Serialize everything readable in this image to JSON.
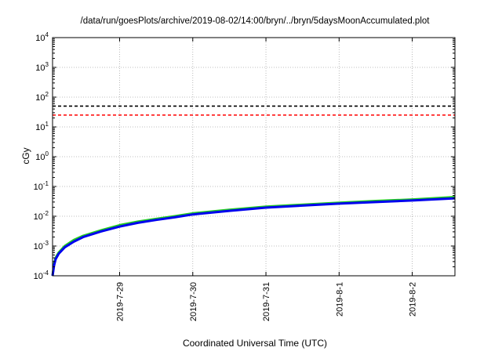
{
  "chart_data": {
    "type": "line",
    "title": "/data/run/goesPlots/archive/2019-08-02/14:00/bryn/../bryn/5daysMoonAccumulated.plot",
    "xlabel": "Coordinated Universal Time (UTC)",
    "ylabel": "cGy",
    "yscale": "log",
    "ylim": [
      0.0001,
      10000
    ],
    "xlim": [
      "2019-07-28T02:00",
      "2019-08-02T14:00"
    ],
    "grid": true,
    "x_ticks": [
      {
        "value": "2019-07-29",
        "label": "2019-7-29"
      },
      {
        "value": "2019-07-30",
        "label": "2019-7-30"
      },
      {
        "value": "2019-07-31",
        "label": "2019-7-31"
      },
      {
        "value": "2019-08-01",
        "label": "2019-8-1"
      },
      {
        "value": "2019-08-02",
        "label": "2019-8-2"
      }
    ],
    "y_ticks": [
      {
        "value": 0.0001,
        "base": "10",
        "exp": "-4"
      },
      {
        "value": 0.001,
        "base": "10",
        "exp": "-3"
      },
      {
        "value": 0.01,
        "base": "10",
        "exp": "-2"
      },
      {
        "value": 0.1,
        "base": "10",
        "exp": "-1"
      },
      {
        "value": 1,
        "base": "10",
        "exp": "0"
      },
      {
        "value": 10,
        "base": "10",
        "exp": "1"
      },
      {
        "value": 100,
        "base": "10",
        "exp": "2"
      },
      {
        "value": 1000,
        "base": "10",
        "exp": "3"
      },
      {
        "value": 10000,
        "base": "10",
        "exp": "4"
      }
    ],
    "reference_lines": [
      {
        "value": 50,
        "color": "#000000",
        "style": "dashed"
      },
      {
        "value": 25,
        "color": "#ff0000",
        "style": "dashed"
      }
    ],
    "series": [
      {
        "color": "#22cc22",
        "x": [
          "2019-07-28T02:00",
          "2019-07-28T02:30",
          "2019-07-28T03:00",
          "2019-07-28T04:00",
          "2019-07-28T06:00",
          "2019-07-28T09:00",
          "2019-07-28T12:00",
          "2019-07-28T18:00",
          "2019-07-29T00:00",
          "2019-07-29T06:00",
          "2019-07-29T12:00",
          "2019-07-29T18:00",
          "2019-07-30T00:00",
          "2019-07-30T12:00",
          "2019-07-31T00:00",
          "2019-07-31T12:00",
          "2019-08-01T00:00",
          "2019-08-01T12:00",
          "2019-08-02T00:00",
          "2019-08-02T14:00"
        ],
        "y": [
          0.0001,
          0.00025,
          0.0004,
          0.0006,
          0.001,
          0.0016,
          0.0022,
          0.0034,
          0.005,
          0.0066,
          0.0082,
          0.01,
          0.0125,
          0.0165,
          0.021,
          0.0245,
          0.0285,
          0.0325,
          0.0365,
          0.044
        ]
      },
      {
        "color": "#0000ee",
        "x": [
          "2019-07-28T02:00",
          "2019-07-28T02:30",
          "2019-07-28T03:00",
          "2019-07-28T04:00",
          "2019-07-28T06:00",
          "2019-07-28T09:00",
          "2019-07-28T12:00",
          "2019-07-28T18:00",
          "2019-07-29T00:00",
          "2019-07-29T06:00",
          "2019-07-29T12:00",
          "2019-07-29T18:00",
          "2019-07-30T00:00",
          "2019-07-30T12:00",
          "2019-07-31T00:00",
          "2019-07-31T12:00",
          "2019-08-01T00:00",
          "2019-08-01T12:00",
          "2019-08-02T00:00",
          "2019-08-02T14:00"
        ],
        "y": [
          0.0001,
          0.00022,
          0.00036,
          0.00055,
          0.0009,
          0.0014,
          0.002,
          0.0031,
          0.0045,
          0.006,
          0.0075,
          0.0092,
          0.0115,
          0.0152,
          0.0195,
          0.0228,
          0.0265,
          0.03,
          0.0338,
          0.04
        ]
      }
    ]
  }
}
